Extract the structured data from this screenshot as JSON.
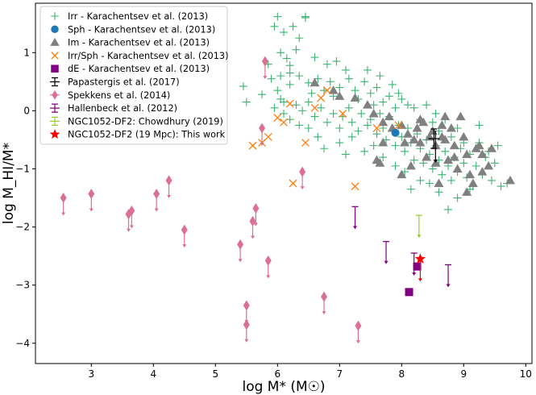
{
  "chart_data": {
    "type": "scatter",
    "title": "",
    "xlabel": "log M* (M☉)",
    "ylabel": "log M_HI/M*",
    "xlim": [
      2.1,
      10.1
    ],
    "ylim": [
      -4.35,
      1.85
    ],
    "xticks": [
      3,
      4,
      5,
      6,
      7,
      8,
      9,
      10
    ],
    "yticks": [
      -4,
      -3,
      -2,
      -1,
      0,
      1
    ],
    "xtick_labels": [
      "3",
      "4",
      "5",
      "6",
      "7",
      "8",
      "9",
      "10"
    ],
    "ytick_labels": [
      "−4",
      "−3",
      "−2",
      "−1",
      "0",
      "1"
    ],
    "legend_position": "top-left",
    "series": [
      {
        "name": "Irr - Karachentsev et al. (2013)",
        "marker": "plus",
        "color": "#3cb371",
        "points": [
          [
            5.95,
            1.45
          ],
          [
            6.0,
            1.62
          ],
          [
            6.1,
            1.35
          ],
          [
            6.25,
            1.45
          ],
          [
            6.35,
            1.25
          ],
          [
            6.45,
            1.6
          ],
          [
            6.3,
            1.05
          ],
          [
            6.6,
            0.92
          ],
          [
            6.8,
            0.8
          ],
          [
            7.1,
            0.7
          ],
          [
            6.45,
            1.62
          ],
          [
            6.05,
            1.0
          ],
          [
            6.15,
            0.9
          ],
          [
            6.2,
            0.78
          ],
          [
            5.9,
            0.55
          ],
          [
            6.0,
            0.35
          ],
          [
            5.75,
            0.28
          ],
          [
            5.45,
            0.42
          ],
          [
            5.5,
            0.15
          ],
          [
            6.05,
            0.2
          ],
          [
            6.2,
            0.45
          ],
          [
            6.35,
            0.6
          ],
          [
            6.5,
            0.48
          ],
          [
            6.55,
            0.3
          ],
          [
            6.65,
            0.55
          ],
          [
            6.75,
            0.35
          ],
          [
            6.85,
            0.5
          ],
          [
            6.9,
            0.25
          ],
          [
            7.0,
            0.4
          ],
          [
            7.15,
            0.55
          ],
          [
            7.25,
            0.35
          ],
          [
            7.3,
            0.2
          ],
          [
            7.4,
            0.5
          ],
          [
            7.5,
            0.3
          ],
          [
            7.55,
            0.1
          ],
          [
            7.6,
            0.4
          ],
          [
            7.7,
            0.15
          ],
          [
            7.8,
            0.25
          ],
          [
            7.9,
            0.05
          ],
          [
            8.0,
            0.2
          ],
          [
            6.3,
            0.1
          ],
          [
            6.4,
            0.0
          ],
          [
            6.5,
            0.15
          ],
          [
            6.6,
            -0.1
          ],
          [
            6.7,
            0.05
          ],
          [
            6.8,
            -0.2
          ],
          [
            6.9,
            -0.05
          ],
          [
            7.0,
            -0.3
          ],
          [
            7.05,
            -0.1
          ],
          [
            7.15,
            0.05
          ],
          [
            7.2,
            -0.2
          ],
          [
            7.3,
            -0.35
          ],
          [
            7.35,
            -0.05
          ],
          [
            7.45,
            -0.25
          ],
          [
            7.5,
            -0.15
          ],
          [
            7.6,
            -0.4
          ],
          [
            7.65,
            -0.05
          ],
          [
            7.7,
            -0.3
          ],
          [
            7.75,
            -0.5
          ],
          [
            7.8,
            -0.1
          ],
          [
            7.85,
            -0.35
          ],
          [
            7.9,
            -0.6
          ],
          [
            7.95,
            -0.25
          ],
          [
            8.0,
            -0.45
          ],
          [
            8.05,
            -0.7
          ],
          [
            8.1,
            -0.3
          ],
          [
            8.15,
            -0.55
          ],
          [
            8.2,
            -0.85
          ],
          [
            8.25,
            -0.4
          ],
          [
            8.3,
            -0.65
          ],
          [
            8.35,
            -0.9
          ],
          [
            8.4,
            -0.5
          ],
          [
            8.45,
            -0.75
          ],
          [
            8.5,
            -1.0
          ],
          [
            8.55,
            -0.6
          ],
          [
            8.6,
            -0.85
          ],
          [
            8.65,
            -1.1
          ],
          [
            8.7,
            -0.7
          ],
          [
            8.75,
            -0.95
          ],
          [
            8.8,
            -1.2
          ],
          [
            8.85,
            -0.8
          ],
          [
            8.9,
            -1.05
          ],
          [
            8.95,
            -0.65
          ],
          [
            9.0,
            -0.9
          ],
          [
            9.05,
            -1.15
          ],
          [
            9.1,
            -0.75
          ],
          [
            9.15,
            -1.3
          ],
          [
            9.2,
            -0.95
          ],
          [
            9.3,
            -1.1
          ],
          [
            9.35,
            -0.8
          ],
          [
            9.45,
            -1.2
          ],
          [
            9.5,
            -0.9
          ],
          [
            9.6,
            -1.3
          ],
          [
            9.7,
            -1.25
          ],
          [
            8.5,
            -0.2
          ],
          [
            8.6,
            -0.35
          ],
          [
            8.7,
            -0.15
          ],
          [
            8.8,
            -0.45
          ],
          [
            8.9,
            -0.3
          ],
          [
            9.0,
            -0.55
          ],
          [
            8.2,
            0.05
          ],
          [
            8.3,
            -0.15
          ],
          [
            8.4,
            0.1
          ],
          [
            8.55,
            -0.05
          ],
          [
            8.1,
            0.1
          ],
          [
            7.95,
            0.3
          ],
          [
            7.85,
            0.45
          ],
          [
            7.65,
            0.6
          ],
          [
            7.45,
            0.7
          ],
          [
            6.95,
            0.85
          ],
          [
            7.0,
            -0.55
          ],
          [
            7.1,
            -0.75
          ],
          [
            7.2,
            -0.45
          ],
          [
            7.4,
            -0.7
          ],
          [
            7.55,
            -0.6
          ],
          [
            7.7,
            -0.8
          ],
          [
            7.9,
            -0.95
          ],
          [
            8.05,
            -1.05
          ],
          [
            8.3,
            -1.2
          ],
          [
            8.6,
            -1.4
          ],
          [
            8.75,
            -1.7
          ],
          [
            9.1,
            -1.35
          ],
          [
            8.9,
            -1.5
          ],
          [
            8.45,
            -1.25
          ],
          [
            8.15,
            -1.35
          ],
          [
            6.5,
            -0.3
          ],
          [
            6.65,
            -0.45
          ],
          [
            6.75,
            -0.65
          ],
          [
            6.35,
            -0.25
          ],
          [
            6.2,
            -0.15
          ],
          [
            6.1,
            -0.05
          ],
          [
            5.95,
            0.05
          ],
          [
            6.05,
            0.6
          ],
          [
            6.2,
            0.65
          ],
          [
            5.85,
            0.8
          ],
          [
            6.1,
            0.15
          ],
          [
            9.25,
            -0.55
          ],
          [
            9.4,
            -0.7
          ],
          [
            9.55,
            -0.6
          ],
          [
            9.25,
            -0.25
          ]
        ]
      },
      {
        "name": "Sph - Karachentsev et al. (2013)",
        "marker": "circle",
        "color": "#1f77b4",
        "points": [
          [
            7.9,
            -0.38
          ]
        ]
      },
      {
        "name": "Im - Karachentsev et al. (2013)",
        "marker": "triangle",
        "color": "#808080",
        "points": [
          [
            6.6,
            0.48
          ],
          [
            6.9,
            0.35
          ],
          [
            7.0,
            0.25
          ],
          [
            7.25,
            0.22
          ],
          [
            7.45,
            0.1
          ],
          [
            7.55,
            -0.05
          ],
          [
            7.7,
            -0.2
          ],
          [
            7.8,
            -0.1
          ],
          [
            7.85,
            -0.3
          ],
          [
            8.0,
            -0.25
          ],
          [
            8.05,
            -0.55
          ],
          [
            8.1,
            -0.4
          ],
          [
            8.2,
            -0.5
          ],
          [
            8.25,
            -0.3
          ],
          [
            8.3,
            -0.55
          ],
          [
            8.35,
            -0.2
          ],
          [
            8.4,
            -0.8
          ],
          [
            8.45,
            -0.45
          ],
          [
            8.55,
            -0.6
          ],
          [
            8.65,
            -0.25
          ],
          [
            8.7,
            -0.5
          ],
          [
            8.75,
            -0.85
          ],
          [
            8.8,
            -0.3
          ],
          [
            8.85,
            -0.6
          ],
          [
            8.9,
            -1.0
          ],
          [
            8.95,
            -0.1
          ],
          [
            9.0,
            -0.45
          ],
          [
            9.05,
            -0.75
          ],
          [
            9.1,
            -1.1
          ],
          [
            9.2,
            -0.65
          ],
          [
            9.25,
            -0.6
          ],
          [
            9.3,
            -0.75
          ],
          [
            9.4,
            -0.95
          ],
          [
            9.45,
            -0.65
          ],
          [
            9.75,
            -1.2
          ],
          [
            7.6,
            -0.85
          ],
          [
            7.65,
            -0.9
          ],
          [
            8.0,
            -1.1
          ],
          [
            8.15,
            -0.95
          ],
          [
            8.55,
            -0.9
          ],
          [
            8.65,
            -0.45
          ],
          [
            8.7,
            -0.1
          ],
          [
            8.85,
            -0.8
          ],
          [
            9.15,
            -1.25
          ],
          [
            9.05,
            -1.4
          ],
          [
            8.3,
            -0.15
          ],
          [
            7.7,
            -0.55
          ],
          [
            8.6,
            -1.25
          ],
          [
            9.3,
            -1.05
          ],
          [
            8.5,
            -0.35
          ]
        ]
      },
      {
        "name": "Irr/Sph - Karachentsev et al. (2013)",
        "marker": "x",
        "color": "#ff7f0e",
        "points": [
          [
            5.6,
            -0.6
          ],
          [
            5.85,
            -0.45
          ],
          [
            5.75,
            -0.55
          ],
          [
            6.0,
            -0.12
          ],
          [
            6.1,
            -0.2
          ],
          [
            6.2,
            0.12
          ],
          [
            6.45,
            -0.55
          ],
          [
            6.6,
            0.05
          ],
          [
            6.7,
            0.22
          ],
          [
            6.8,
            0.35
          ],
          [
            7.05,
            -0.05
          ],
          [
            6.25,
            -1.25
          ],
          [
            7.25,
            -1.3
          ],
          [
            7.6,
            -0.3
          ],
          [
            7.95,
            -0.25
          ]
        ]
      },
      {
        "name": "dE - Karachentsev et al. (2013)",
        "marker": "square",
        "color": "#800080",
        "points": [
          [
            8.12,
            -3.12
          ],
          [
            8.25,
            -2.68
          ]
        ]
      },
      {
        "name": "Papastergis et al. (2017)",
        "marker": "errorbar",
        "color": "#000000",
        "points": [
          [
            8.52,
            -0.48
          ]
        ]
      },
      {
        "name": "Spekkens et al. (2014)",
        "marker": "diamond",
        "color": "#db7093",
        "upper_limit": true,
        "points": [
          [
            2.55,
            -1.5
          ],
          [
            3.0,
            -1.43
          ],
          [
            3.6,
            -1.78
          ],
          [
            3.65,
            -1.72
          ],
          [
            4.05,
            -1.43
          ],
          [
            4.25,
            -1.2
          ],
          [
            4.5,
            -2.05
          ],
          [
            5.4,
            -2.3
          ],
          [
            5.6,
            -1.9
          ],
          [
            5.65,
            -1.68
          ],
          [
            5.75,
            -0.3
          ],
          [
            5.85,
            -2.58
          ],
          [
            6.4,
            -1.05
          ],
          [
            6.75,
            -3.2
          ],
          [
            5.5,
            -3.35
          ],
          [
            5.5,
            -3.68
          ],
          [
            7.3,
            -3.7
          ],
          [
            5.8,
            0.85
          ]
        ]
      },
      {
        "name": "Hallenbeck et al. (2012)",
        "marker": "limit",
        "color": "#800080",
        "upper_limit": true,
        "points": [
          [
            7.25,
            -1.65
          ],
          [
            7.75,
            -2.25
          ],
          [
            8.2,
            -2.45
          ],
          [
            8.75,
            -2.65
          ]
        ]
      },
      {
        "name": "NGC1052-DF2: Chowdhury (2019)",
        "marker": "limit",
        "color": "#9acd32",
        "upper_limit": true,
        "points": [
          [
            8.28,
            -1.8
          ]
        ]
      },
      {
        "name": "NGC1052-DF2 (19 Mpc): This work",
        "marker": "star",
        "color": "#ff0000",
        "upper_limit": true,
        "points": [
          [
            8.3,
            -2.55
          ]
        ]
      }
    ]
  }
}
